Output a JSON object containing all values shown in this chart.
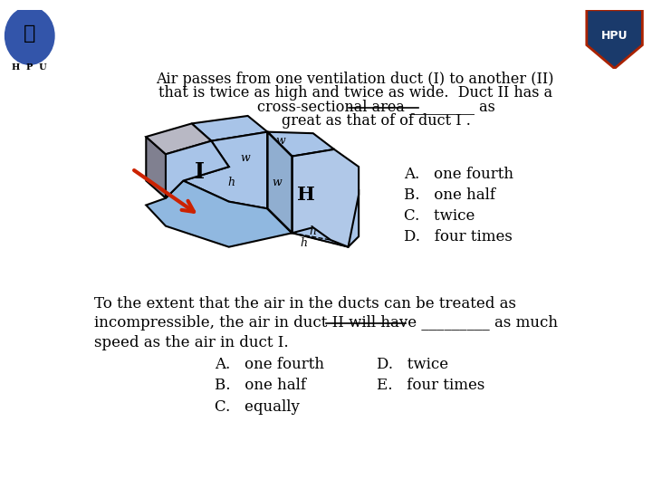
{
  "bg_color": "#ffffff",
  "title_line1": "Air passes from one ventilation duct (I) to another (II)",
  "title_line2": "that is twice as high and twice as wide.  Duct II has a",
  "title_line3": "cross-sectional area _________ as",
  "title_line4": "great as that of of duct I .",
  "choices_q1": [
    "A.   one fourth",
    "B.   one half",
    "C.   twice",
    "D.   four times"
  ],
  "para2_line1": "To the extent that the air in the ducts can be treated as",
  "para2_line2": "incompressible, the air in duct II will have _________ as much",
  "para2_line3": "speed as the air in duct I.",
  "choices_q2_left": [
    "A.   one fourth",
    "B.   one half",
    "C.   equally"
  ],
  "choices_q2_right": [
    "D.   twice",
    "E.   four times"
  ],
  "duct_fill": "#a8c4e8",
  "duct_edge": "#000000",
  "duct_dark_face": "#808090",
  "duct_top_face": "#b8b8c4",
  "arrow_color": "#cc2200",
  "font_size_title": 11.5,
  "font_size_body": 12,
  "font_size_label_I": 17,
  "font_size_label_II": 15,
  "font_size_small": 9
}
